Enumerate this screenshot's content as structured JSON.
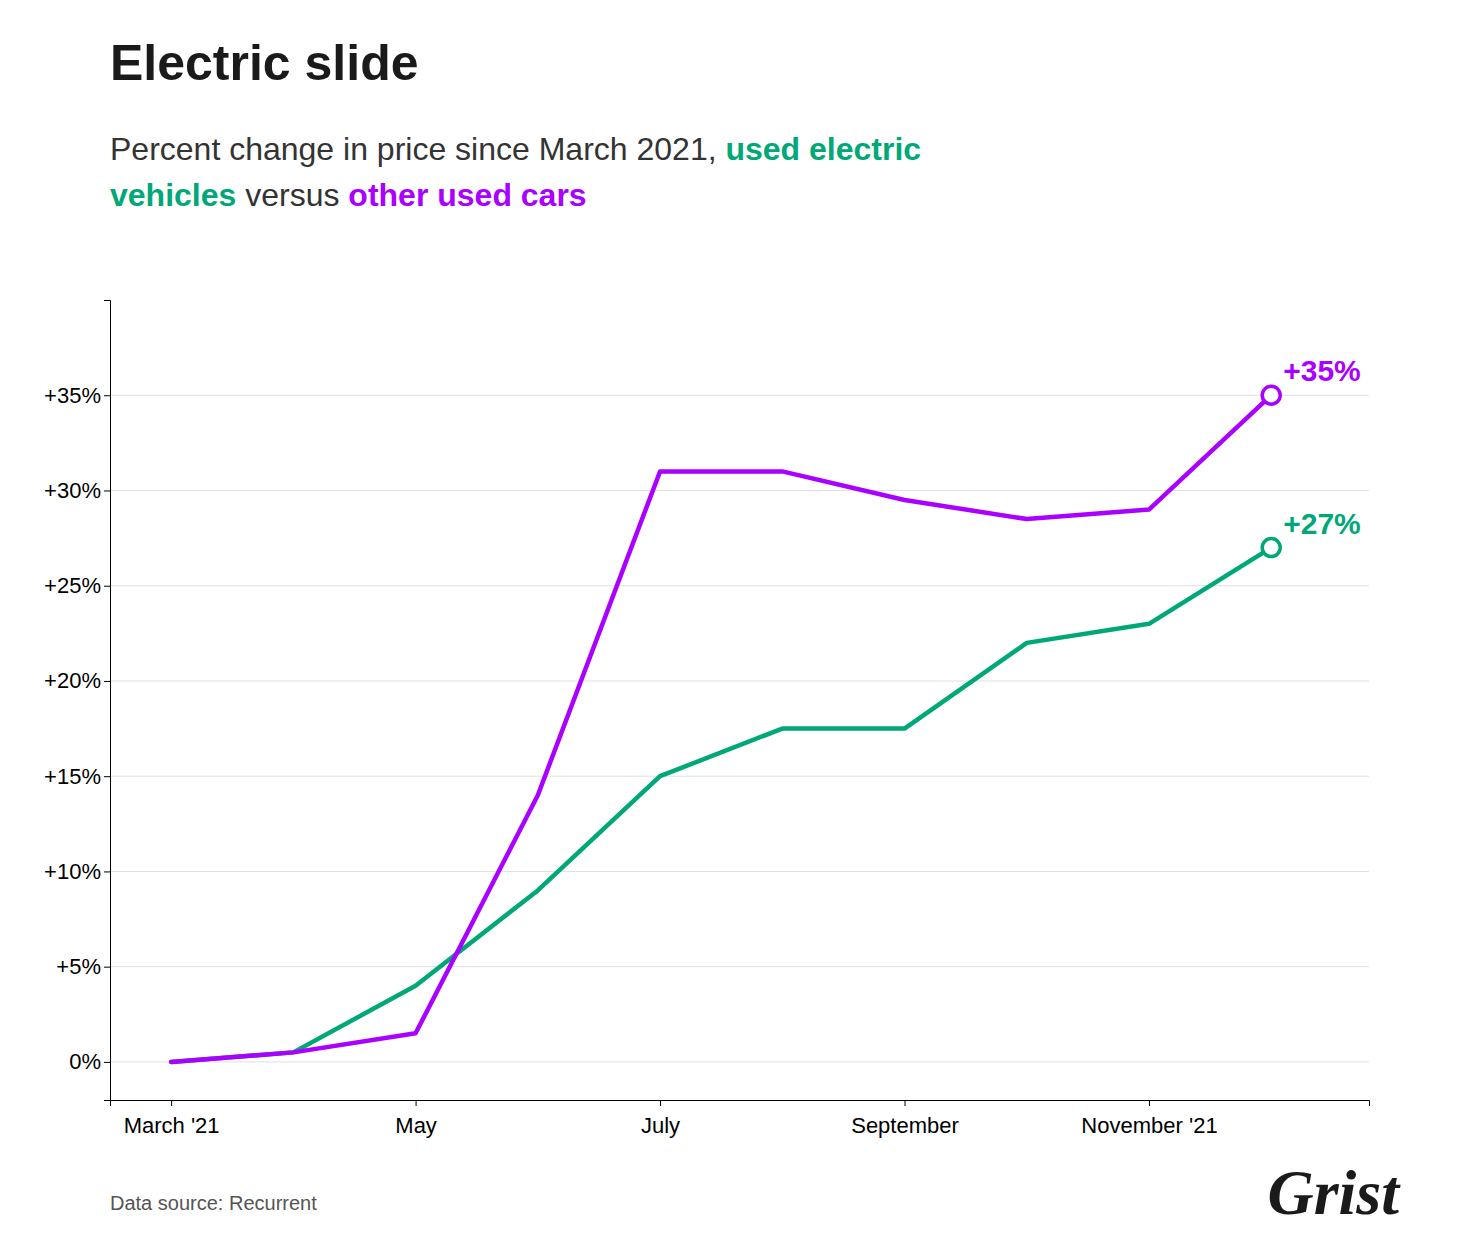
{
  "chart_data": {
    "type": "line",
    "title": "Electric slide",
    "subtitle": [
      [
        {
          "text": "Percent change in price since March 2021, ",
          "color": "#333333"
        },
        {
          "text": "used electric",
          "color": "#00A878"
        }
      ],
      [
        {
          "text": "vehicles",
          "color": "#00A878"
        },
        {
          "text": " versus ",
          "color": "#333333"
        },
        {
          "text": "other used cars",
          "color": "#AA00FF"
        }
      ]
    ],
    "x": [
      3,
      4,
      5,
      6,
      7,
      8,
      9,
      10,
      11,
      12
    ],
    "series": [
      {
        "color": "#00A878",
        "values": [
          0,
          0.5,
          4,
          9,
          15,
          17.5,
          17.5,
          22,
          23,
          27
        ],
        "end_label": "+27%",
        "marker": "end-circle"
      },
      {
        "color": "#AA00FF",
        "values": [
          0,
          0.5,
          1.5,
          14,
          31,
          31,
          29.5,
          28.5,
          29,
          35
        ],
        "end_label": "+35%",
        "marker": "end-circle"
      }
    ],
    "xlim": [
      2.5,
      12.8
    ],
    "xticks": [
      {
        "value": 3,
        "label": "March '21"
      },
      {
        "value": 5,
        "label": "May"
      },
      {
        "value": 7,
        "label": "July"
      },
      {
        "value": 9,
        "label": "September"
      },
      {
        "value": 11,
        "label": "November '21"
      }
    ],
    "ylim": [
      -2,
      40
    ],
    "yticks": [
      {
        "value": 0,
        "label": "0%"
      },
      {
        "value": 5,
        "label": "+5%"
      },
      {
        "value": 10,
        "label": "+10%"
      },
      {
        "value": 15,
        "label": "+15%"
      },
      {
        "value": 20,
        "label": "+20%"
      },
      {
        "value": 25,
        "label": "+25%"
      },
      {
        "value": 30,
        "label": "+30%"
      },
      {
        "value": 35,
        "label": "+35%"
      }
    ],
    "grid": true,
    "caption": "Data source: Recurrent",
    "branding": "Grist"
  }
}
